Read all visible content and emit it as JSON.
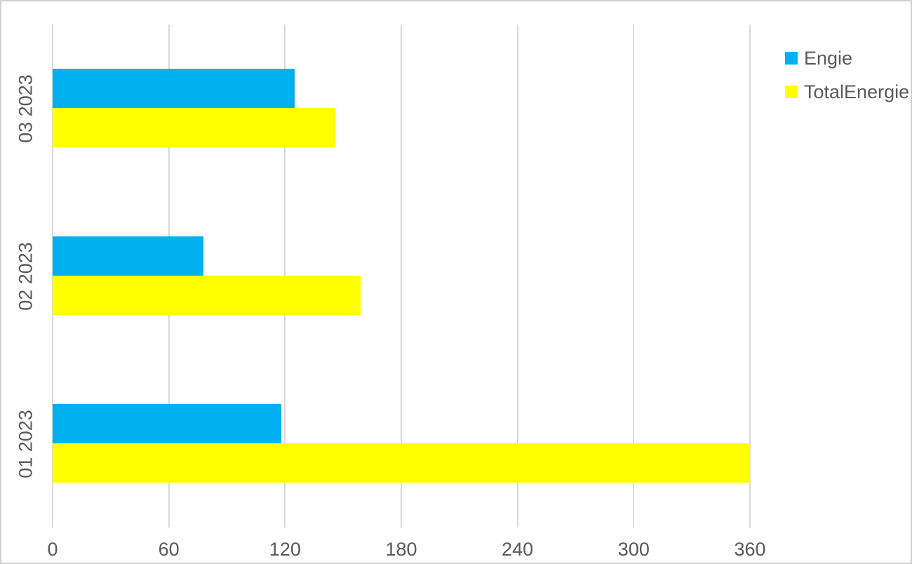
{
  "chart_data": {
    "type": "bar",
    "orientation": "horizontal",
    "title": "",
    "categories": [
      "03 2023",
      "02 2023",
      "01 2023"
    ],
    "series": [
      {
        "name": "Engie",
        "color": "#00B0F0",
        "values": [
          125,
          78,
          118
        ]
      },
      {
        "name": "TotalEnergie",
        "color": "#FFFF00",
        "values": [
          146,
          159,
          360
        ]
      }
    ],
    "x_ticks": [
      0,
      60,
      120,
      180,
      240,
      300,
      360
    ],
    "xlim": [
      0,
      360
    ],
    "grid": "vertical-major",
    "legend_position": "top-right"
  },
  "legend": {
    "items": [
      {
        "label": "Engie",
        "swatch_color": "#00B0F0",
        "swatch_icon": "square-swatch-icon"
      },
      {
        "label": "TotalEnergie",
        "swatch_color": "#FFFF00",
        "swatch_icon": "square-swatch-icon"
      }
    ]
  },
  "colors": {
    "text": "#595959",
    "gridline": "#D9D9D9",
    "border": "#CFCFCF",
    "background": "#FFFFFF"
  }
}
